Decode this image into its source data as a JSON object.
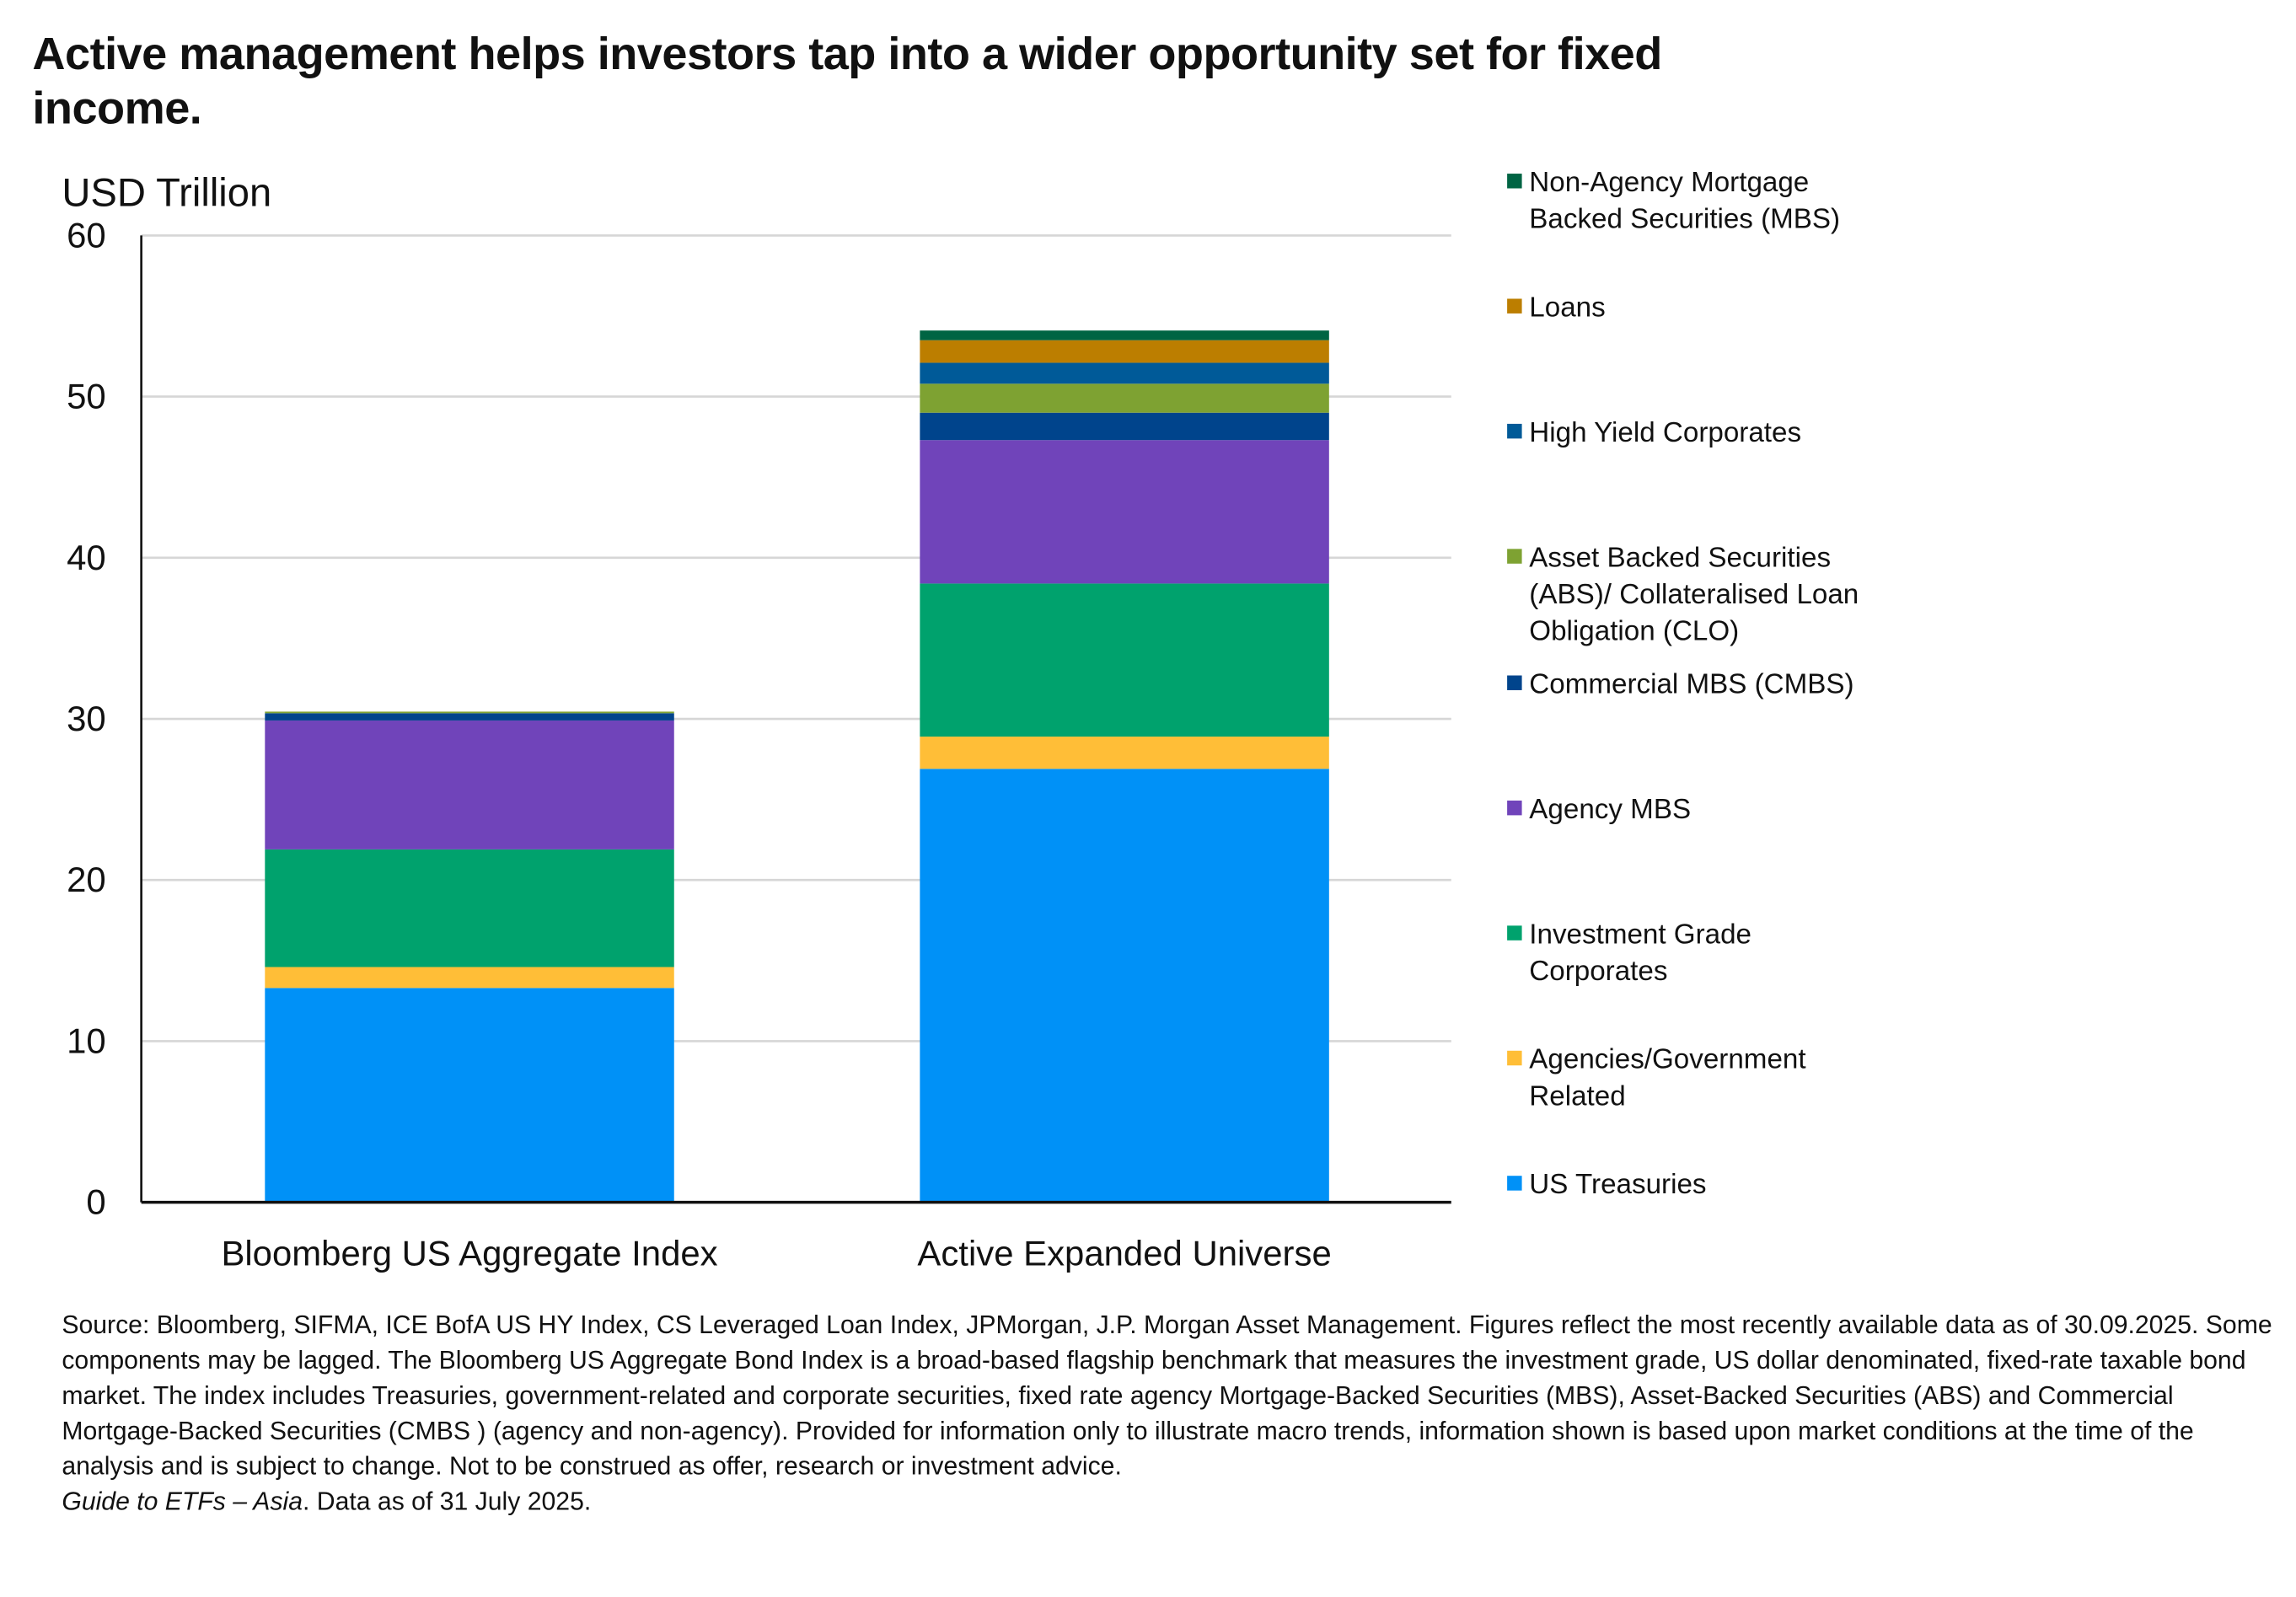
{
  "title": "Active management helps investors tap into a wider opportunity set for fixed income.",
  "footnote": {
    "source": "Source: Bloomberg, SIFMA, ICE BofA US HY Index, CS Leveraged Loan Index, JPMorgan, J.P. Morgan Asset Management. Figures reflect the most recently available data as of 30.09.2025. Some components may be lagged. The Bloomberg US Aggregate Bond Index is a broad-based flagship benchmark that measures the investment grade, US dollar denominated, fixed-rate taxable bond market. The index includes Treasuries, government-related and corporate securities, fixed rate agency Mortgage-Backed Securities (MBS), Asset-Backed Securities (ABS) and Commercial Mortgage-Backed Securities (CMBS ) (agency and non-agency). Provided for information only to illustrate macro trends, information shown is based upon market conditions at the time of the analysis and is subject to change. Not to be construed as offer, research or investment advice.",
    "guide": "Guide to ETFs – Asia",
    "data_as_of": ". Data as of 31 July 2025."
  },
  "chart_data": {
    "type": "bar",
    "stacked": true,
    "ylabel": "USD Trillion",
    "ylim": [
      0,
      60
    ],
    "yticks": [
      "0",
      "10",
      "20",
      "30",
      "40",
      "50",
      "60"
    ],
    "grid": true,
    "legend_placement": "right",
    "categories": [
      "Bloomberg US Aggregate Index",
      "Active Expanded Universe"
    ],
    "series": [
      {
        "name": "US Treasuries",
        "color": "#0091F7",
        "values": [
          13.3,
          26.9
        ]
      },
      {
        "name": "Agencies/Government Related",
        "color": "#FFBE37",
        "values": [
          1.3,
          2.0
        ]
      },
      {
        "name": "Investment Grade Corporates",
        "color": "#00A26D",
        "values": [
          7.3,
          9.5
        ]
      },
      {
        "name": "Agency MBS",
        "color": "#7044BA",
        "values": [
          8.0,
          8.9
        ]
      },
      {
        "name": "Commercial MBS (CMBS)",
        "color": "#00448C",
        "values": [
          0.45,
          1.7
        ]
      },
      {
        "name": "Asset Backed Securities (ABS)/ Collateralised Loan Obligation (CLO)",
        "color": "#7EA232",
        "values": [
          0.1,
          1.8
        ]
      },
      {
        "name": "High Yield Corporates",
        "color": "#005A98",
        "values": [
          0,
          1.3
        ]
      },
      {
        "name": "Loans",
        "color": "#BC7E00",
        "values": [
          0,
          1.4
        ]
      },
      {
        "name": "Non-Agency Mortgage Backed Securities (MBS)",
        "color": "#006443",
        "values": [
          0,
          0.6
        ]
      }
    ]
  }
}
